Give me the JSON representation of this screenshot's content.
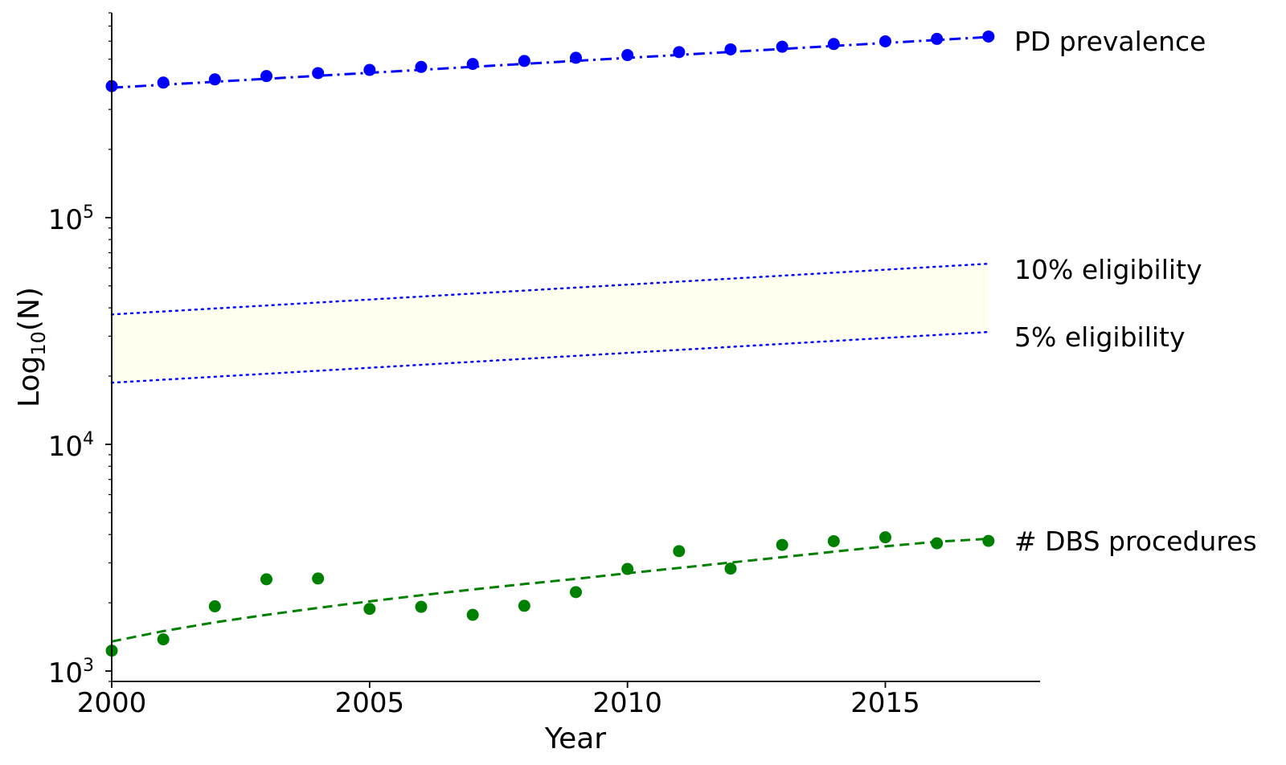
{
  "chart_data": {
    "type": "scatter",
    "xlabel": "Year",
    "ylabel": "Log",
    "ylabel_sub": "10",
    "ylabel_suffix": "(N)",
    "yscale": "log",
    "xlim": [
      2000,
      2018
    ],
    "ylim": [
      900,
      800000
    ],
    "x_ticks": [
      "2000",
      "2005",
      "2010",
      "2015"
    ],
    "y_ticks": [
      {
        "base": "10",
        "exp": "3",
        "value": 1000
      },
      {
        "base": "10",
        "exp": "4",
        "value": 10000
      },
      {
        "base": "10",
        "exp": "5",
        "value": 100000
      }
    ],
    "grid": false,
    "series": [
      {
        "name": "PD prevalence",
        "style": "points+dashdot",
        "color": "#0000ff",
        "x": [
          2000,
          2001,
          2002,
          2003,
          2004,
          2005,
          2006,
          2007,
          2008,
          2009,
          2010,
          2011,
          2012,
          2013,
          2014,
          2015,
          2016,
          2017
        ],
        "y": [
          380000,
          394000,
          407000,
          421000,
          434000,
          448000,
          462000,
          476000,
          491000,
          507000,
          521000,
          537000,
          552000,
          567000,
          583000,
          599000,
          614000,
          629000
        ],
        "fit_line": {
          "x": [
            2000,
            2017
          ],
          "y": [
            374000,
            626000
          ],
          "dash": "dashdot"
        }
      },
      {
        "name": "# DBS procedures",
        "style": "points+dashed",
        "color": "#008000",
        "x": [
          2000,
          2001,
          2002,
          2003,
          2004,
          2005,
          2006,
          2007,
          2008,
          2009,
          2010,
          2011,
          2012,
          2013,
          2014,
          2015,
          2016,
          2017
        ],
        "y": [
          1230,
          1380,
          1930,
          2540,
          2560,
          1880,
          1920,
          1770,
          1940,
          2230,
          2820,
          3380,
          2830,
          3600,
          3740,
          3890,
          3660,
          3750
        ],
        "fit_line": {
          "x": [
            2000,
            2001,
            2002,
            2003,
            2004,
            2005,
            2006,
            2007,
            2008,
            2009,
            2010,
            2011,
            2012,
            2013,
            2014,
            2015,
            2016,
            2017
          ],
          "y": [
            1350,
            1500,
            1640,
            1770,
            1900,
            2030,
            2160,
            2290,
            2420,
            2550,
            2700,
            2850,
            3010,
            3180,
            3360,
            3550,
            3720,
            3830
          ],
          "dash": "dashed"
        }
      }
    ],
    "eligibility_band": {
      "upper_label": "10% eligibility",
      "lower_label": "5% eligibility",
      "upper": {
        "x": [
          2000,
          2017
        ],
        "y": [
          37400,
          62600
        ]
      },
      "lower": {
        "x": [
          2000,
          2017
        ],
        "y": [
          18700,
          31300
        ]
      },
      "fill_color": "#fffff0",
      "line_color": "#0000ff"
    }
  }
}
